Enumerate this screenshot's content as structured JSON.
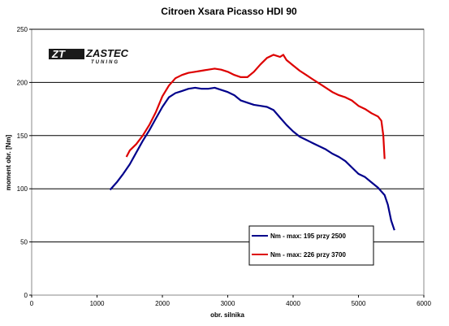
{
  "chart_data": {
    "type": "line",
    "title": "Citroen Xsara Picasso HDI 90",
    "xlabel": "obr. silnika",
    "ylabel": "moment obr. [Nm]",
    "xlim": [
      0,
      6000
    ],
    "ylim": [
      0,
      250
    ],
    "xticks": [
      0,
      1000,
      2000,
      3000,
      4000,
      5000,
      6000
    ],
    "yticks": [
      0,
      50,
      100,
      150,
      200,
      250
    ],
    "grid": "horizontal",
    "legend_position": "bottom-right",
    "logo": {
      "brand": "ZASTEC",
      "sub": "TUNING"
    },
    "series": [
      {
        "name": "Nm - max: 195 przy 2500",
        "color": "#00008b",
        "points": [
          [
            1200,
            99
          ],
          [
            1300,
            106
          ],
          [
            1400,
            114
          ],
          [
            1500,
            123
          ],
          [
            1600,
            134
          ],
          [
            1700,
            145
          ],
          [
            1800,
            155
          ],
          [
            1900,
            166
          ],
          [
            2000,
            177
          ],
          [
            2100,
            186
          ],
          [
            2200,
            190
          ],
          [
            2300,
            192
          ],
          [
            2400,
            194
          ],
          [
            2500,
            195
          ],
          [
            2600,
            194
          ],
          [
            2700,
            194
          ],
          [
            2800,
            195
          ],
          [
            2900,
            193
          ],
          [
            3000,
            191
          ],
          [
            3100,
            188
          ],
          [
            3200,
            183
          ],
          [
            3300,
            181
          ],
          [
            3400,
            179
          ],
          [
            3500,
            178
          ],
          [
            3600,
            177
          ],
          [
            3700,
            174
          ],
          [
            3800,
            167
          ],
          [
            3900,
            160
          ],
          [
            4000,
            154
          ],
          [
            4100,
            149
          ],
          [
            4200,
            146
          ],
          [
            4300,
            143
          ],
          [
            4400,
            140
          ],
          [
            4500,
            137
          ],
          [
            4600,
            133
          ],
          [
            4700,
            130
          ],
          [
            4800,
            126
          ],
          [
            4900,
            120
          ],
          [
            5000,
            114
          ],
          [
            5100,
            111
          ],
          [
            5200,
            106
          ],
          [
            5300,
            101
          ],
          [
            5400,
            94
          ],
          [
            5450,
            85
          ],
          [
            5500,
            70
          ],
          [
            5550,
            61
          ]
        ]
      },
      {
        "name": "Nm - max: 226 przy 3700",
        "color": "#dd0000",
        "points": [
          [
            1450,
            130
          ],
          [
            1500,
            136
          ],
          [
            1600,
            142
          ],
          [
            1700,
            150
          ],
          [
            1800,
            160
          ],
          [
            1900,
            172
          ],
          [
            2000,
            187
          ],
          [
            2100,
            197
          ],
          [
            2200,
            204
          ],
          [
            2300,
            207
          ],
          [
            2400,
            209
          ],
          [
            2500,
            210
          ],
          [
            2600,
            211
          ],
          [
            2700,
            212
          ],
          [
            2800,
            213
          ],
          [
            2900,
            212
          ],
          [
            3000,
            210
          ],
          [
            3100,
            207
          ],
          [
            3200,
            205
          ],
          [
            3300,
            205
          ],
          [
            3400,
            210
          ],
          [
            3500,
            217
          ],
          [
            3600,
            223
          ],
          [
            3700,
            226
          ],
          [
            3800,
            224
          ],
          [
            3850,
            226
          ],
          [
            3900,
            221
          ],
          [
            4000,
            216
          ],
          [
            4100,
            211
          ],
          [
            4200,
            207
          ],
          [
            4300,
            203
          ],
          [
            4400,
            199
          ],
          [
            4500,
            195
          ],
          [
            4600,
            191
          ],
          [
            4700,
            188
          ],
          [
            4800,
            186
          ],
          [
            4900,
            183
          ],
          [
            5000,
            178
          ],
          [
            5100,
            175
          ],
          [
            5200,
            171
          ],
          [
            5300,
            168
          ],
          [
            5350,
            164
          ],
          [
            5380,
            150
          ],
          [
            5400,
            128
          ]
        ]
      }
    ]
  }
}
